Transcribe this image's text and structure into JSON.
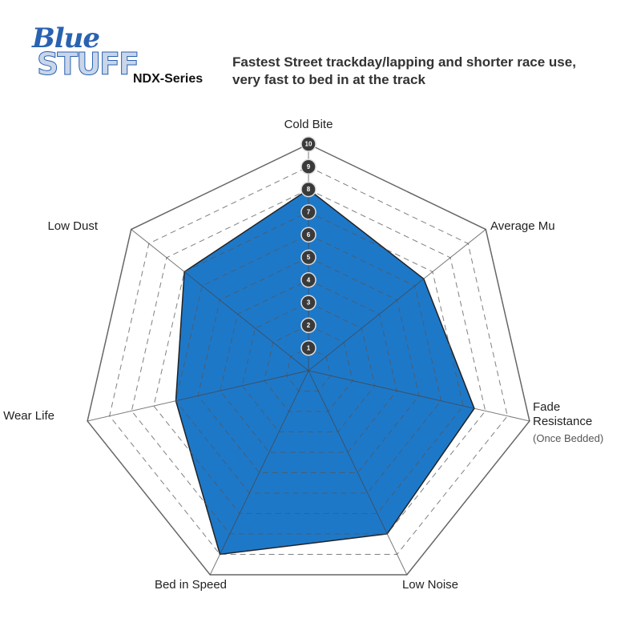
{
  "chart_data": {
    "type": "radar",
    "title": "Fastest Street trackday/lapping and shorter race use, very fast to bed in at the track",
    "logo": [
      "Blue",
      "STUFF"
    ],
    "annotation": "(Once Bedded)",
    "categories": [
      "Cold Bite",
      "Average Mu",
      "Fade Resistance",
      "Low Noise",
      "Bed in Speed",
      "Wear Life",
      "Low Dust"
    ],
    "series": [
      {
        "name": "NDX-Series",
        "color": "#1e78c8",
        "values": [
          8,
          6.5,
          7.5,
          8,
          9,
          6,
          7
        ]
      }
    ],
    "rlim": [
      0,
      10
    ],
    "rticks": [
      1,
      2,
      3,
      4,
      5,
      6,
      7,
      8,
      9,
      10
    ],
    "grid": true
  }
}
